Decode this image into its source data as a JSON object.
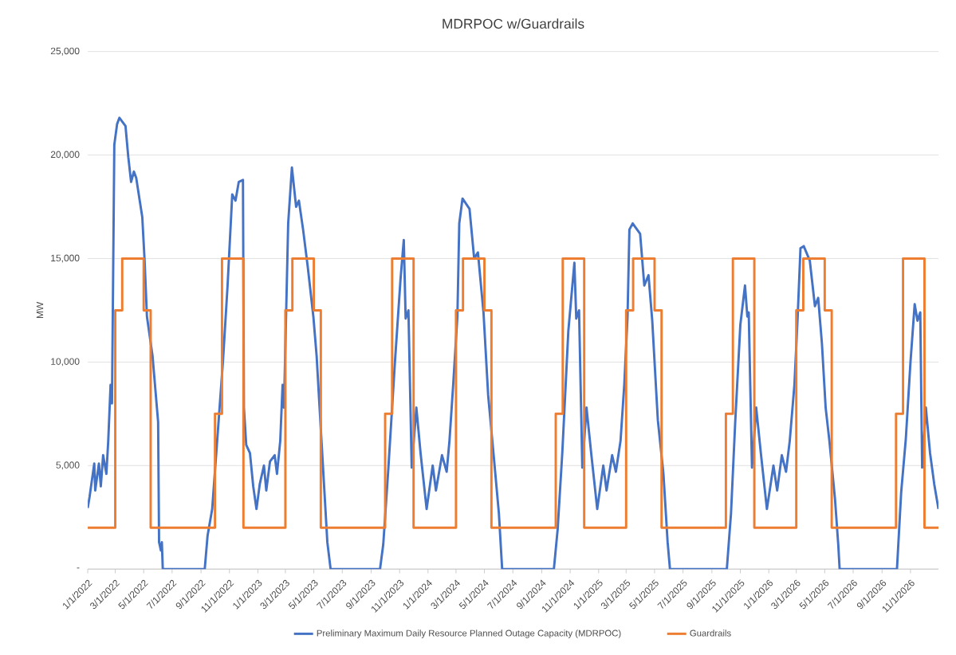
{
  "chart_data": {
    "type": "line",
    "title": "MDRPOC w/Guardrails",
    "ylabel": "MW",
    "xlim": [
      "2022-01-01",
      "2026-12-31"
    ],
    "ylim": [
      0,
      25000
    ],
    "yticks": [
      {
        "value": 0,
        "label": "-"
      },
      {
        "value": 5000,
        "label": "5,000"
      },
      {
        "value": 10000,
        "label": "10,000"
      },
      {
        "value": 15000,
        "label": "15,000"
      },
      {
        "value": 20000,
        "label": "20,000"
      },
      {
        "value": 25000,
        "label": "25,000"
      }
    ],
    "xticks": [
      {
        "value": "2022-01-01",
        "label": "1/1/2022"
      },
      {
        "value": "2022-03-01",
        "label": "3/1/2022"
      },
      {
        "value": "2022-05-01",
        "label": "5/1/2022"
      },
      {
        "value": "2022-07-01",
        "label": "7/1/2022"
      },
      {
        "value": "2022-09-01",
        "label": "9/1/2022"
      },
      {
        "value": "2022-11-01",
        "label": "11/1/2022"
      },
      {
        "value": "2023-01-01",
        "label": "1/1/2023"
      },
      {
        "value": "2023-03-01",
        "label": "3/1/2023"
      },
      {
        "value": "2023-05-01",
        "label": "5/1/2023"
      },
      {
        "value": "2023-07-01",
        "label": "7/1/2023"
      },
      {
        "value": "2023-09-01",
        "label": "9/1/2023"
      },
      {
        "value": "2023-11-01",
        "label": "11/1/2023"
      },
      {
        "value": "2024-01-01",
        "label": "1/1/2024"
      },
      {
        "value": "2024-03-01",
        "label": "3/1/2024"
      },
      {
        "value": "2024-05-01",
        "label": "5/1/2024"
      },
      {
        "value": "2024-07-01",
        "label": "7/1/2024"
      },
      {
        "value": "2024-09-01",
        "label": "9/1/2024"
      },
      {
        "value": "2024-11-01",
        "label": "11/1/2024"
      },
      {
        "value": "2025-01-01",
        "label": "1/1/2025"
      },
      {
        "value": "2025-03-01",
        "label": "3/1/2025"
      },
      {
        "value": "2025-05-01",
        "label": "5/1/2025"
      },
      {
        "value": "2025-07-01",
        "label": "7/1/2025"
      },
      {
        "value": "2025-09-01",
        "label": "9/1/2025"
      },
      {
        "value": "2025-11-01",
        "label": "11/1/2025"
      },
      {
        "value": "2026-01-01",
        "label": "1/1/2026"
      },
      {
        "value": "2026-03-01",
        "label": "3/1/2026"
      },
      {
        "value": "2026-05-01",
        "label": "5/1/2026"
      },
      {
        "value": "2026-07-01",
        "label": "7/1/2026"
      },
      {
        "value": "2026-09-01",
        "label": "9/1/2026"
      },
      {
        "value": "2026-11-01",
        "label": "11/1/2026"
      }
    ],
    "grid": "y",
    "legend": "bottom",
    "marker": "none",
    "line_style": "solid",
    "series": [
      {
        "name": "Preliminary Maximum Daily Resource Planned  Outage Capacity (MDRPOC)",
        "color": "#4472c4",
        "x": [
          "2022-01-01",
          "2022-01-05",
          "2022-01-15",
          "2022-01-17",
          "2022-01-25",
          "2022-01-29",
          "2022-02-03",
          "2022-02-10",
          "2022-02-14",
          "2022-02-19",
          "2022-02-22",
          "2022-02-27",
          "2022-03-05",
          "2022-03-10",
          "2022-03-23",
          "2022-03-29",
          "2022-04-04",
          "2022-04-10",
          "2022-04-15",
          "2022-04-28",
          "2022-05-03",
          "2022-05-08",
          "2022-05-20",
          "2022-06-01",
          "2022-06-03",
          "2022-06-07",
          "2022-06-09",
          "2022-06-11",
          "2022-09-09",
          "2022-09-15",
          "2022-09-25",
          "2022-10-05",
          "2022-10-18",
          "2022-10-28",
          "2022-11-07",
          "2022-11-14",
          "2022-11-21",
          "2022-11-30",
          "2022-12-02",
          "2022-12-07",
          "2022-12-15",
          "2022-12-22",
          "2022-12-29",
          "2023-01-05",
          "2023-01-14",
          "2023-01-19",
          "2023-01-27",
          "2023-02-06",
          "2023-02-11",
          "2023-02-18",
          "2023-02-23",
          "2023-02-26",
          "2023-03-07",
          "2023-03-15",
          "2023-03-24",
          "2023-03-30",
          "2023-04-08",
          "2023-04-18",
          "2023-04-30",
          "2023-05-07",
          "2023-05-20",
          "2023-05-30",
          "2023-06-06",
          "2023-09-20",
          "2023-09-27",
          "2023-10-08",
          "2023-10-22",
          "2023-11-03",
          "2023-11-10",
          "2023-11-14",
          "2023-11-20",
          "2023-11-27",
          "2023-12-07",
          "2023-12-16",
          "2023-12-29",
          "2024-01-11",
          "2024-01-18",
          "2024-01-31",
          "2024-02-10",
          "2024-02-16",
          "2024-02-24",
          "2024-03-04",
          "2024-03-08",
          "2024-03-15",
          "2024-03-30",
          "2024-04-09",
          "2024-04-17",
          "2024-04-29",
          "2024-05-09",
          "2024-05-22",
          "2024-06-01",
          "2024-06-08",
          "2024-09-27",
          "2024-10-05",
          "2024-10-15",
          "2024-10-28",
          "2024-11-10",
          "2024-11-14",
          "2024-11-20",
          "2024-11-27",
          "2024-12-06",
          "2024-12-16",
          "2024-12-29",
          "2025-01-11",
          "2025-01-18",
          "2025-01-30",
          "2025-02-07",
          "2025-02-17",
          "2025-02-25",
          "2025-03-04",
          "2025-03-08",
          "2025-03-15",
          "2025-03-31",
          "2025-04-09",
          "2025-04-18",
          "2025-04-26",
          "2025-05-08",
          "2025-05-20",
          "2025-05-29",
          "2025-06-03",
          "2025-10-03",
          "2025-10-12",
          "2025-10-21",
          "2025-11-01",
          "2025-11-11",
          "2025-11-16",
          "2025-11-19",
          "2025-11-26",
          "2025-12-05",
          "2025-12-15",
          "2025-12-28",
          "2026-01-11",
          "2026-01-19",
          "2026-01-29",
          "2026-02-07",
          "2026-02-15",
          "2026-02-25",
          "2026-03-04",
          "2026-03-10",
          "2026-03-17",
          "2026-03-30",
          "2026-04-10",
          "2026-04-17",
          "2026-04-25",
          "2026-05-03",
          "2026-05-11",
          "2026-05-23",
          "2026-05-30",
          "2026-06-02",
          "2026-10-03",
          "2026-10-12",
          "2026-10-22",
          "2026-11-01",
          "2026-11-10",
          "2026-11-16",
          "2026-11-22",
          "2026-11-26",
          "2026-12-04",
          "2026-12-13",
          "2026-12-22",
          "2026-12-31"
        ],
        "values": [
          2950,
          3500,
          5100,
          3800,
          5100,
          4000,
          5500,
          4600,
          6200,
          8900,
          8000,
          20500,
          21500,
          21800,
          21400,
          19900,
          18700,
          19200,
          18900,
          17000,
          14900,
          12200,
          10300,
          7100,
          1300,
          900,
          1300,
          0,
          0,
          1600,
          2900,
          6000,
          10000,
          13700,
          18100,
          17800,
          18700,
          18800,
          7800,
          6000,
          5600,
          4000,
          2900,
          4100,
          5000,
          3800,
          5200,
          5500,
          4600,
          6200,
          8900,
          7800,
          16700,
          19400,
          17500,
          17800,
          16400,
          14600,
          12200,
          10300,
          5200,
          1300,
          0,
          0,
          1200,
          4900,
          10000,
          14000,
          15900,
          12100,
          12500,
          4900,
          7800,
          5600,
          2900,
          5000,
          3800,
          5500,
          4700,
          6200,
          8900,
          12200,
          16700,
          17900,
          17400,
          15000,
          15300,
          12400,
          8400,
          5200,
          2700,
          0,
          0,
          1900,
          5600,
          11500,
          14800,
          12100,
          12500,
          4900,
          7800,
          5600,
          2900,
          5000,
          3800,
          5500,
          4700,
          6200,
          8900,
          12200,
          16400,
          16700,
          16200,
          13700,
          14200,
          12000,
          7200,
          4600,
          1300,
          0,
          0,
          2700,
          7100,
          11800,
          13700,
          12200,
          12400,
          4900,
          7800,
          5600,
          2900,
          5000,
          3800,
          5500,
          4700,
          6200,
          8900,
          12200,
          15500,
          15600,
          14900,
          12700,
          13100,
          10900,
          7800,
          6200,
          3400,
          1200,
          0,
          0,
          3700,
          6300,
          10000,
          12800,
          12000,
          12400,
          4900,
          7800,
          5600,
          4100,
          2900
        ]
      },
      {
        "name": "Guardrails",
        "color": "#ed7d31",
        "type": "step",
        "x": [
          "2022-01-01",
          "2022-03-01",
          "2022-03-16",
          "2022-05-01",
          "2022-05-16",
          "2022-10-01",
          "2022-10-16",
          "2022-12-01",
          "2023-03-01",
          "2023-03-16",
          "2023-05-01",
          "2023-05-16",
          "2023-10-01",
          "2023-10-16",
          "2023-12-01",
          "2024-03-01",
          "2024-03-16",
          "2024-05-01",
          "2024-05-16",
          "2024-10-01",
          "2024-10-16",
          "2024-12-01",
          "2025-03-01",
          "2025-03-16",
          "2025-05-01",
          "2025-05-16",
          "2025-10-01",
          "2025-10-16",
          "2025-12-01",
          "2026-03-01",
          "2026-03-16",
          "2026-05-01",
          "2026-05-16",
          "2026-10-01",
          "2026-10-16",
          "2026-12-01",
          "2026-12-31"
        ],
        "values": [
          2000,
          12500,
          15000,
          12500,
          2000,
          7500,
          15000,
          2000,
          12500,
          15000,
          12500,
          2000,
          7500,
          15000,
          2000,
          12500,
          15000,
          12500,
          2000,
          7500,
          15000,
          2000,
          12500,
          15000,
          12500,
          2000,
          7500,
          15000,
          2000,
          12500,
          15000,
          12500,
          2000,
          7500,
          15000,
          2000,
          2000
        ]
      }
    ]
  }
}
